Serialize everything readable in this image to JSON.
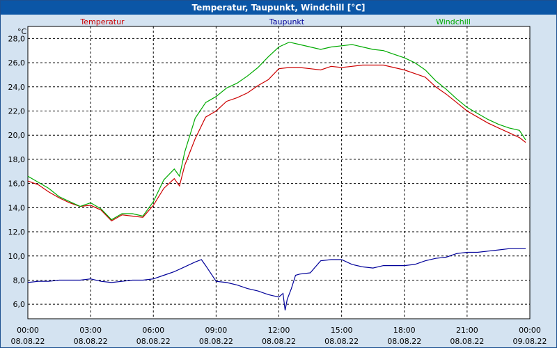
{
  "chart_data": {
    "type": "line",
    "title": "Temperatur, Taupunkt, Windchill [°C]",
    "ylabel": "°C",
    "ylim": [
      4.8,
      29.0
    ],
    "xlim": [
      0,
      24
    ],
    "grid": true,
    "legend_position": "top",
    "y_ticks": [
      {
        "value": 6.0,
        "label": "6,0"
      },
      {
        "value": 8.0,
        "label": "8,0"
      },
      {
        "value": 10.0,
        "label": "10,0"
      },
      {
        "value": 12.0,
        "label": "12,0"
      },
      {
        "value": 14.0,
        "label": "14,0"
      },
      {
        "value": 16.0,
        "label": "16,0"
      },
      {
        "value": 18.0,
        "label": "18,0"
      },
      {
        "value": 20.0,
        "label": "20,0"
      },
      {
        "value": 22.0,
        "label": "22,0"
      },
      {
        "value": 24.0,
        "label": "24,0"
      },
      {
        "value": 26.0,
        "label": "26,0"
      },
      {
        "value": 28.0,
        "label": "28,0"
      }
    ],
    "x_ticks": [
      {
        "value": 0,
        "time": "00:00",
        "date": "08.08.22"
      },
      {
        "value": 3,
        "time": "03:00",
        "date": "08.08.22"
      },
      {
        "value": 6,
        "time": "06:00",
        "date": "08.08.22"
      },
      {
        "value": 9,
        "time": "09:00",
        "date": "08.08.22"
      },
      {
        "value": 12,
        "time": "12:00",
        "date": "08.08.22"
      },
      {
        "value": 15,
        "time": "15:00",
        "date": "08.08.22"
      },
      {
        "value": 18,
        "time": "18:00",
        "date": "08.08.22"
      },
      {
        "value": 21,
        "time": "21:00",
        "date": "08.08.22"
      },
      {
        "value": 24,
        "time": "00:00",
        "date": "09.08.22"
      }
    ],
    "series": [
      {
        "name": "Temperatur",
        "color": "#cc0000",
        "x": [
          0,
          0.5,
          1,
          1.5,
          2,
          2.5,
          3,
          3.5,
          4,
          4.5,
          5,
          5.5,
          6,
          6.5,
          7,
          7.25,
          7.5,
          8,
          8.5,
          9,
          9.5,
          10,
          10.5,
          11,
          11.5,
          12,
          12.5,
          13,
          13.5,
          14,
          14.5,
          15,
          15.5,
          16,
          16.5,
          17,
          17.5,
          18,
          18.5,
          19,
          19.5,
          20,
          20.5,
          21,
          21.5,
          22,
          22.5,
          23,
          23.5,
          23.8
        ],
        "values": [
          16.2,
          15.9,
          15.3,
          14.8,
          14.4,
          14.1,
          14.2,
          13.8,
          12.9,
          13.4,
          13.3,
          13.2,
          14.2,
          15.6,
          16.4,
          15.8,
          17.5,
          19.7,
          21.5,
          22.0,
          22.8,
          23.1,
          23.5,
          24.1,
          24.6,
          25.5,
          25.6,
          25.6,
          25.5,
          25.4,
          25.7,
          25.6,
          25.7,
          25.8,
          25.8,
          25.8,
          25.6,
          25.4,
          25.1,
          24.8,
          24.0,
          23.4,
          22.7,
          22.0,
          21.5,
          21.0,
          20.6,
          20.2,
          19.8,
          19.4
        ]
      },
      {
        "name": "Taupunkt",
        "color": "#000099",
        "x": [
          0,
          0.5,
          1,
          1.5,
          2,
          2.5,
          3,
          3.5,
          4,
          4.5,
          5,
          5.5,
          6,
          6.5,
          7,
          7.5,
          8,
          8.3,
          8.5,
          9,
          9.5,
          10,
          10.5,
          11,
          11.5,
          12,
          12.2,
          12.3,
          12.4,
          12.6,
          12.8,
          13,
          13.5,
          14,
          14.5,
          15,
          15.5,
          16,
          16.5,
          17,
          17.5,
          18,
          18.5,
          19,
          19.5,
          20,
          20.5,
          21,
          21.5,
          22,
          22.5,
          23,
          23.5,
          23.8
        ],
        "values": [
          7.8,
          7.9,
          7.9,
          8.0,
          8.0,
          8.0,
          8.1,
          7.9,
          7.8,
          7.9,
          8.0,
          8.0,
          8.1,
          8.4,
          8.7,
          9.1,
          9.5,
          9.7,
          9.2,
          7.9,
          7.8,
          7.6,
          7.3,
          7.1,
          6.8,
          6.6,
          6.9,
          5.5,
          6.4,
          7.3,
          8.4,
          8.5,
          8.6,
          9.6,
          9.7,
          9.7,
          9.3,
          9.1,
          9.0,
          9.2,
          9.2,
          9.2,
          9.3,
          9.6,
          9.8,
          9.9,
          10.2,
          10.3,
          10.3,
          10.4,
          10.5,
          10.6,
          10.6,
          10.6
        ]
      },
      {
        "name": "Windchill",
        "color": "#00aa00",
        "x": [
          0,
          0.5,
          1,
          1.5,
          2,
          2.5,
          3,
          3.5,
          4,
          4.5,
          5,
          5.5,
          6,
          6.5,
          7,
          7.25,
          7.5,
          8,
          8.5,
          9,
          9.5,
          10,
          10.5,
          11,
          11.5,
          12,
          12.5,
          13,
          13.5,
          14,
          14.5,
          15,
          15.5,
          16,
          16.5,
          17,
          17.5,
          18,
          18.5,
          19,
          19.5,
          20,
          20.5,
          21,
          21.5,
          22,
          22.5,
          23,
          23.5,
          23.8
        ],
        "values": [
          16.6,
          16.1,
          15.6,
          14.9,
          14.5,
          14.1,
          14.4,
          13.9,
          13.0,
          13.5,
          13.5,
          13.3,
          14.5,
          16.3,
          17.2,
          16.6,
          18.6,
          21.4,
          22.7,
          23.2,
          23.9,
          24.3,
          24.9,
          25.6,
          26.5,
          27.3,
          27.7,
          27.5,
          27.3,
          27.1,
          27.3,
          27.4,
          27.5,
          27.3,
          27.1,
          27.0,
          26.7,
          26.4,
          26.0,
          25.4,
          24.5,
          23.8,
          23.0,
          22.3,
          21.8,
          21.3,
          20.9,
          20.6,
          20.4,
          19.6
        ]
      }
    ]
  }
}
